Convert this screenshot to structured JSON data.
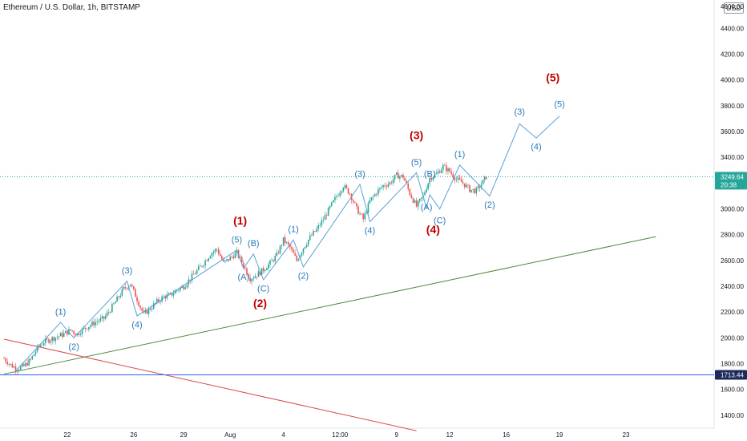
{
  "header": {
    "title": "Ethereum / U.S. Dollar, 1h, BITSTAMP",
    "currency": "USD",
    "top_tick": "4600.00"
  },
  "colors": {
    "wave_label_small": "#2a7ab8",
    "wave_label_major": "#c00000",
    "wave_line": "#5aa0d6",
    "support_line": "#4f8a3c",
    "resistance_line": "#d84a4a",
    "horizontal_level": "#2962ff",
    "candle_up": "#26a69a",
    "candle_down": "#ef5350",
    "current_price_line": "#26a69a"
  },
  "chart_data": {
    "type": "candlestick",
    "title": "Ethereum / U.S. Dollar, 1h, BITSTAMP",
    "y_axis": {
      "range": [
        1300,
        4620
      ],
      "ticks": [
        1400,
        1600,
        1800,
        2000,
        2200,
        2400,
        2600,
        2800,
        3000,
        3200,
        3400,
        3600,
        3800,
        4000,
        4200,
        4400
      ],
      "tick_labels": [
        "1400.00",
        "1600.00",
        "1800.00",
        "2000.00",
        "2200.00",
        "2400.00",
        "2600.00",
        "2800.00",
        "3000.00",
        "3200.00",
        "3400.00",
        "3600.00",
        "3800.00",
        "4000.00",
        "4200.00",
        "4400.00"
      ]
    },
    "x_axis": {
      "tick_labels": [
        "22",
        "26",
        "29",
        "Aug",
        "4",
        "12:00",
        "9",
        "12",
        "16",
        "19",
        "23"
      ],
      "tick_bar_index": [
        19,
        39,
        54,
        68,
        84,
        101,
        118,
        134,
        151,
        167,
        187
      ]
    },
    "price_series": [
      [
        0,
        1840
      ],
      [
        2,
        1790
      ],
      [
        4,
        1760
      ],
      [
        6,
        1780
      ],
      [
        8,
        1830
      ],
      [
        10,
        1920
      ],
      [
        12,
        1970
      ],
      [
        14,
        1990
      ],
      [
        16,
        2010
      ],
      [
        18,
        2030
      ],
      [
        20,
        2060
      ],
      [
        22,
        2030
      ],
      [
        24,
        2070
      ],
      [
        26,
        2100
      ],
      [
        28,
        2130
      ],
      [
        30,
        2150
      ],
      [
        32,
        2220
      ],
      [
        34,
        2300
      ],
      [
        36,
        2380
      ],
      [
        38,
        2420
      ],
      [
        40,
        2300
      ],
      [
        42,
        2180
      ],
      [
        44,
        2230
      ],
      [
        46,
        2280
      ],
      [
        48,
        2320
      ],
      [
        50,
        2330
      ],
      [
        52,
        2370
      ],
      [
        54,
        2400
      ],
      [
        56,
        2460
      ],
      [
        58,
        2520
      ],
      [
        60,
        2580
      ],
      [
        62,
        2650
      ],
      [
        64,
        2690
      ],
      [
        66,
        2580
      ],
      [
        68,
        2620
      ],
      [
        70,
        2660
      ],
      [
        72,
        2560
      ],
      [
        74,
        2460
      ],
      [
        76,
        2490
      ],
      [
        78,
        2530
      ],
      [
        80,
        2580
      ],
      [
        82,
        2640
      ],
      [
        84,
        2760
      ],
      [
        86,
        2700
      ],
      [
        88,
        2600
      ],
      [
        90,
        2700
      ],
      [
        92,
        2780
      ],
      [
        94,
        2840
      ],
      [
        96,
        2920
      ],
      [
        98,
        3010
      ],
      [
        100,
        3100
      ],
      [
        102,
        3180
      ],
      [
        104,
        3120
      ],
      [
        106,
        3000
      ],
      [
        108,
        2920
      ],
      [
        110,
        3060
      ],
      [
        112,
        3130
      ],
      [
        114,
        3180
      ],
      [
        116,
        3200
      ],
      [
        118,
        3260
      ],
      [
        120,
        3250
      ],
      [
        122,
        3120
      ],
      [
        124,
        3020
      ],
      [
        126,
        3100
      ],
      [
        128,
        3240
      ],
      [
        130,
        3270
      ],
      [
        132,
        3330
      ],
      [
        134,
        3290
      ],
      [
        136,
        3230
      ],
      [
        138,
        3200
      ],
      [
        140,
        3150
      ],
      [
        142,
        3140
      ],
      [
        144,
        3210
      ],
      [
        145,
        3250
      ]
    ],
    "current_price": {
      "value": 3249.64,
      "label": "3249.64",
      "countdown": "20:38"
    },
    "horizontal_level": {
      "value": 1713.44,
      "label": "1713.44"
    },
    "support_line": {
      "from": [
        0,
        1720
      ],
      "to": [
        196,
        2785
      ]
    },
    "resistance_line": {
      "from": [
        0,
        1990
      ],
      "to": [
        124,
        1280
      ]
    },
    "wave_path_sub": [
      [
        3,
        1730
      ],
      [
        17,
        2120
      ],
      [
        21,
        2000
      ],
      [
        37,
        2440
      ],
      [
        40,
        2170
      ],
      [
        70,
        2680
      ],
      [
        72,
        2540
      ],
      [
        75,
        2650
      ],
      [
        78,
        2450
      ],
      [
        87,
        2760
      ],
      [
        90,
        2550
      ],
      [
        107,
        3190
      ],
      [
        110,
        2900
      ],
      [
        124,
        3280
      ],
      [
        127,
        3010
      ],
      [
        128,
        3110
      ],
      [
        131,
        3000
      ],
      [
        137,
        3340
      ],
      [
        146,
        3100
      ],
      [
        155,
        3660
      ],
      [
        160,
        3550
      ],
      [
        167,
        3720
      ]
    ],
    "wave_labels_sub": [
      {
        "text": "(1)",
        "x": 17,
        "y": 2180
      },
      {
        "text": "(2)",
        "x": 21,
        "y": 1910
      },
      {
        "text": "(3)",
        "x": 37,
        "y": 2500
      },
      {
        "text": "(4)",
        "x": 40,
        "y": 2080
      },
      {
        "text": "(5)",
        "x": 70,
        "y": 2740
      },
      {
        "text": "(B)",
        "x": 75,
        "y": 2710
      },
      {
        "text": "(A)",
        "x": 72,
        "y": 2450
      },
      {
        "text": "(C)",
        "x": 78,
        "y": 2360
      },
      {
        "text": "(1)",
        "x": 87,
        "y": 2820
      },
      {
        "text": "(2)",
        "x": 90,
        "y": 2460
      },
      {
        "text": "(3)",
        "x": 107,
        "y": 3250
      },
      {
        "text": "(4)",
        "x": 110,
        "y": 2810
      },
      {
        "text": "(5)",
        "x": 124,
        "y": 3340
      },
      {
        "text": "(B)",
        "x": 128,
        "y": 3250
      },
      {
        "text": "(A)",
        "x": 127,
        "y": 2990
      },
      {
        "text": "(C)",
        "x": 131,
        "y": 2890
      },
      {
        "text": "(1)",
        "x": 137,
        "y": 3400
      },
      {
        "text": "(2)",
        "x": 146,
        "y": 3010
      },
      {
        "text": "(3)",
        "x": 155,
        "y": 3730
      },
      {
        "text": "(4)",
        "x": 160,
        "y": 3460
      },
      {
        "text": "(5)",
        "x": 167,
        "y": 3790
      }
    ],
    "wave_labels_major": [
      {
        "text": "(1)",
        "x": 71,
        "y": 2880
      },
      {
        "text": "(2)",
        "x": 77,
        "y": 2240
      },
      {
        "text": "(3)",
        "x": 124,
        "y": 3540
      },
      {
        "text": "(4)",
        "x": 129,
        "y": 2810
      },
      {
        "text": "(5)",
        "x": 165,
        "y": 3990
      }
    ]
  }
}
